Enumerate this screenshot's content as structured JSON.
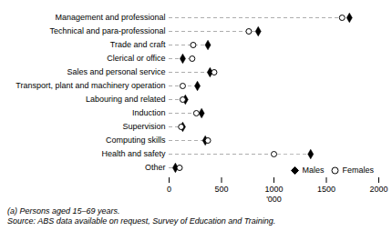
{
  "chart_data": {
    "type": "dot",
    "orientation": "horizontal",
    "categories": [
      "Management and professional",
      "Technical and para-professional",
      "Trade and craft",
      "Clerical or office",
      "Sales and personal service",
      "Transport, plant and machinery operation",
      "Labouring and related",
      "Induction",
      "Supervision",
      "Computing skills",
      "Health and safety",
      "Other"
    ],
    "series": [
      {
        "name": "Males",
        "color": "#000000",
        "marker": "diamond",
        "values": [
          1720,
          850,
          370,
          130,
          390,
          270,
          155,
          310,
          130,
          345,
          1350,
          60
        ]
      },
      {
        "name": "Females",
        "color": "#000000",
        "marker": "circle-open",
        "values": [
          1650,
          760,
          230,
          220,
          430,
          130,
          130,
          260,
          115,
          370,
          1000,
          100
        ]
      }
    ],
    "color": "#aaaaaa",
    "line_style": "dashed",
    "xlabel": "'000",
    "xlim": [
      0,
      2000
    ],
    "xticks": [
      0,
      500,
      1000,
      1500,
      2000
    ],
    "legend": "lower right",
    "grid": false,
    "annotations": [
      "(a) Persons aged 15–69 years.",
      "Source: ABS data available on request, Survey of Education and Training."
    ]
  }
}
